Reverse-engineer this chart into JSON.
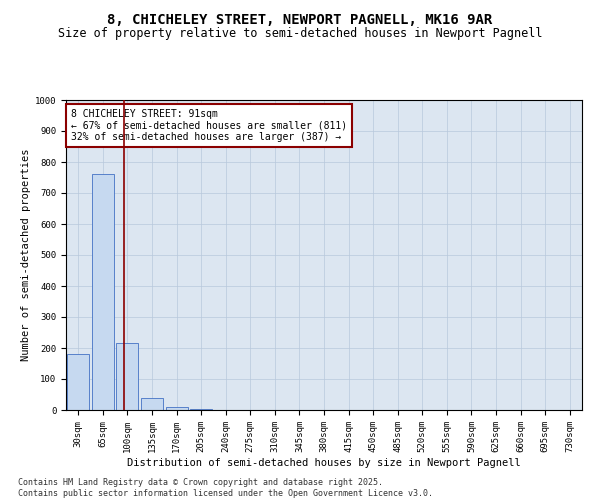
{
  "title": "8, CHICHELEY STREET, NEWPORT PAGNELL, MK16 9AR",
  "subtitle": "Size of property relative to semi-detached houses in Newport Pagnell",
  "xlabel": "Distribution of semi-detached houses by size in Newport Pagnell",
  "ylabel": "Number of semi-detached properties",
  "categories": [
    "30sqm",
    "65sqm",
    "100sqm",
    "135sqm",
    "170sqm",
    "205sqm",
    "240sqm",
    "275sqm",
    "310sqm",
    "345sqm",
    "380sqm",
    "415sqm",
    "450sqm",
    "485sqm",
    "520sqm",
    "555sqm",
    "590sqm",
    "625sqm",
    "660sqm",
    "695sqm",
    "730sqm"
  ],
  "values": [
    180,
    760,
    215,
    40,
    10,
    2,
    0,
    0,
    0,
    0,
    0,
    0,
    0,
    0,
    0,
    0,
    0,
    0,
    0,
    0,
    0
  ],
  "bar_color": "#c6d9f0",
  "bar_edge_color": "#4472c4",
  "grid_color": "#b8c8dc",
  "background_color": "#dce6f1",
  "vline_x": 1.85,
  "vline_color": "#8B0000",
  "annotation_line1": "8 CHICHELEY STREET: 91sqm",
  "annotation_line2": "← 67% of semi-detached houses are smaller (811)",
  "annotation_line3": "32% of semi-detached houses are larger (387) →",
  "annotation_box_color": "white",
  "annotation_box_edge": "#8B0000",
  "ylim": [
    0,
    1000
  ],
  "yticks": [
    0,
    100,
    200,
    300,
    400,
    500,
    600,
    700,
    800,
    900,
    1000
  ],
  "footer": "Contains HM Land Registry data © Crown copyright and database right 2025.\nContains public sector information licensed under the Open Government Licence v3.0.",
  "title_fontsize": 10,
  "subtitle_fontsize": 8.5,
  "xlabel_fontsize": 7.5,
  "ylabel_fontsize": 7.5,
  "tick_fontsize": 6.5,
  "annotation_fontsize": 7,
  "footer_fontsize": 6
}
